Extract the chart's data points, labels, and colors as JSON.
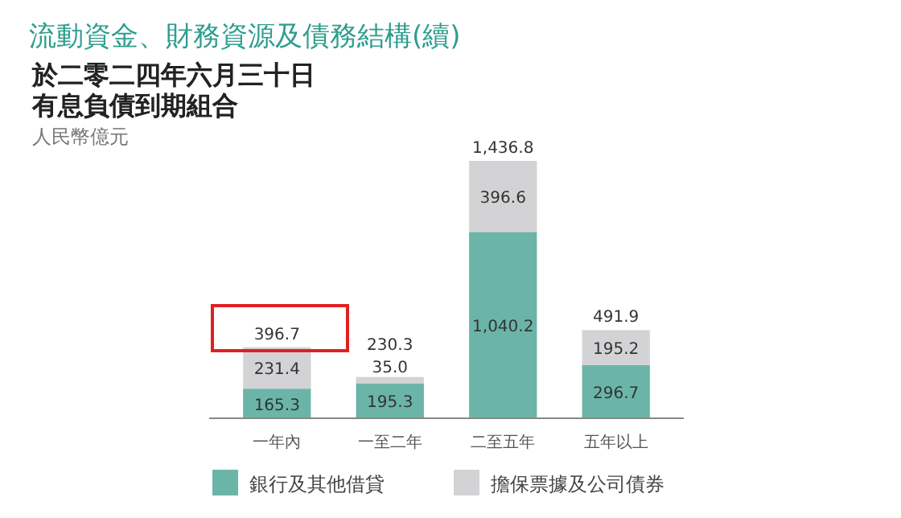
{
  "chart_data": {
    "type": "bar",
    "title": "流動資金、財務資源及債務結構(續)",
    "subtitle": "於二零二四年六月三十日有息負債到期組合",
    "ylabel": "人民幣億元",
    "categories": [
      "一年內",
      "一至二年",
      "二至五年",
      "五年以上"
    ],
    "stacked": true,
    "legend": "bottom",
    "series": [
      {
        "name": "銀行及其他借貸",
        "color": "#6bb5a8",
        "values": [
          165.3,
          195.3,
          1040.2,
          296.7
        ],
        "value_labels": [
          "165.3",
          "195.3",
          "1,040.2",
          "296.7"
        ]
      },
      {
        "name": "擔保票據及公司債券",
        "color": "#d3d3d5",
        "values": [
          231.4,
          35.0,
          396.6,
          195.2
        ],
        "value_labels": [
          "231.4",
          "35.0",
          "396.6",
          "195.2"
        ]
      }
    ],
    "totals": [
      "396.7",
      "230.3",
      "1,436.8",
      "491.9"
    ]
  }
}
